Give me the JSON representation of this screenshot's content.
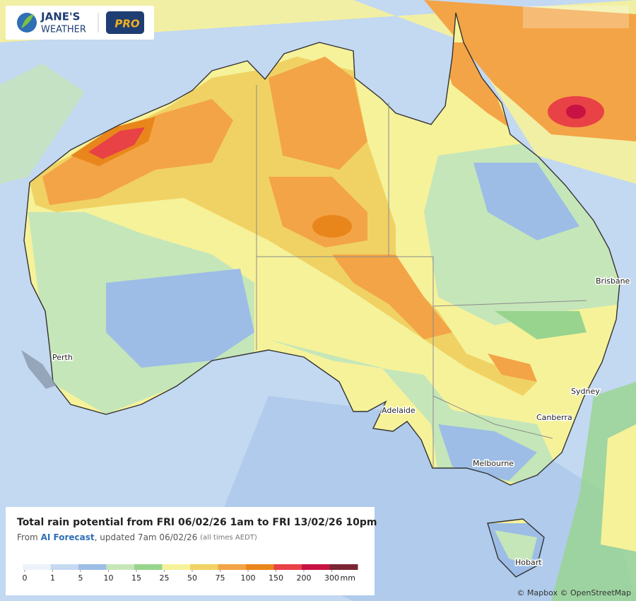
{
  "logo": {
    "name": "JANE'S",
    "subname": "WEATHER",
    "badge": "PRO"
  },
  "cities": [
    {
      "label": "Perth"
    },
    {
      "label": "Adelaide"
    },
    {
      "label": "Melbourne"
    },
    {
      "label": "Canberra"
    },
    {
      "label": "Sydney"
    },
    {
      "label": "Brisbane"
    },
    {
      "label": "Hobart"
    }
  ],
  "legend": {
    "title": "Total rain potential from FRI 06/02/26 1am to FRI 13/02/26 10pm",
    "subtitle_prefix": "From",
    "subtitle_source": "AI Forecast",
    "subtitle_rest": ", updated 7am 06/02/26",
    "subtitle_note": "(all times AEDT)",
    "ticks": [
      0,
      1,
      5,
      10,
      15,
      25,
      50,
      75,
      100,
      150,
      200,
      300
    ],
    "colors": [
      "#eef3fb",
      "#c6d9f1",
      "#9dbde6",
      "#c5e6b9",
      "#98d48d",
      "#f6f29a",
      "#f0d264",
      "#f3a446",
      "#e9861b",
      "#e84146",
      "#c81243",
      "#7a2434"
    ],
    "unit": "mm"
  },
  "attribution": "© Mapbox © OpenStreetMap"
}
